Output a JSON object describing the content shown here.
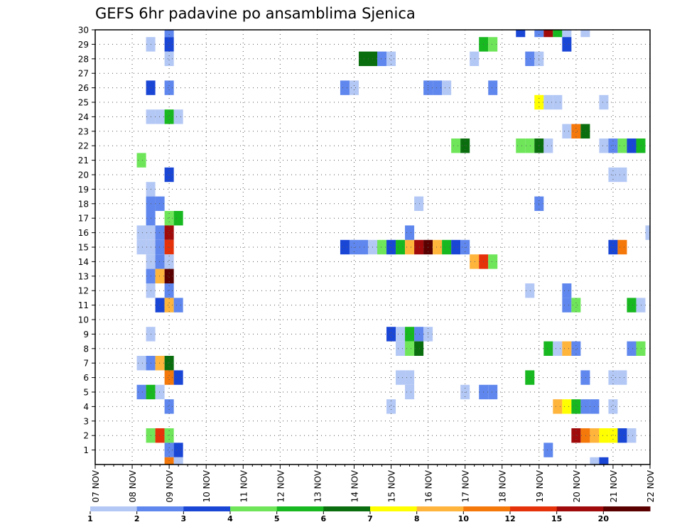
{
  "chart_data": {
    "type": "heatmap",
    "title": "GEFS 6hr padavine po ansamblima Sjenica",
    "x_tick_labels": [
      "07 NOV",
      "08 NOV",
      "09 NOV",
      "10 NOV",
      "11 NOV",
      "12 NOV",
      "13 NOV",
      "14 NOV",
      "15 NOV",
      "16 NOV",
      "17 NOV",
      "18 NOV",
      "19 NOV",
      "20 NOV",
      "21 NOV",
      "22 NOV"
    ],
    "x_range_days": [
      7,
      22
    ],
    "y_tick_labels": [
      "1",
      "2",
      "3",
      "4",
      "5",
      "6",
      "7",
      "8",
      "9",
      "10",
      "11",
      "12",
      "13",
      "14",
      "15",
      "16",
      "17",
      "18",
      "19",
      "20",
      "21",
      "22",
      "23",
      "24",
      "25",
      "26",
      "27",
      "28",
      "29",
      "30"
    ],
    "y_range": [
      0,
      30
    ],
    "grid": true,
    "legend": {
      "placement": "bottom",
      "labels": [
        "1",
        "2",
        "3",
        "4",
        "5",
        "6",
        "7",
        "8",
        "10",
        "12",
        "15",
        "20"
      ],
      "colors": [
        "#b4c8f5",
        "#5f87ed",
        "#1a46d6",
        "#6fe65a",
        "#18b820",
        "#0a6e0e",
        "#ffff00",
        "#ffb43c",
        "#f5780a",
        "#e6320a",
        "#a00a0a",
        "#5a0000"
      ]
    },
    "cell_width_days": 0.25,
    "cells": [
      {
        "t": 9.0,
        "m": 30,
        "l": 2
      },
      {
        "t": 9.0,
        "m": 29,
        "l": 3
      },
      {
        "t": 9.0,
        "m": 28,
        "l": 1
      },
      {
        "t": 8.5,
        "m": 29,
        "l": 1
      },
      {
        "t": 8.5,
        "m": 26,
        "l": 3
      },
      {
        "t": 9.0,
        "m": 26,
        "l": 2
      },
      {
        "t": 8.5,
        "m": 24,
        "l": 1
      },
      {
        "t": 8.75,
        "m": 24,
        "l": 1
      },
      {
        "t": 9.0,
        "m": 24,
        "l": 5
      },
      {
        "t": 9.25,
        "m": 24,
        "l": 1
      },
      {
        "t": 8.25,
        "m": 21,
        "l": 4
      },
      {
        "t": 9.0,
        "m": 20,
        "l": 3
      },
      {
        "t": 8.5,
        "m": 19,
        "l": 1
      },
      {
        "t": 8.5,
        "m": 18,
        "l": 2
      },
      {
        "t": 8.75,
        "m": 18,
        "l": 2
      },
      {
        "t": 8.5,
        "m": 17,
        "l": 2
      },
      {
        "t": 9.0,
        "m": 17,
        "l": 4
      },
      {
        "t": 9.25,
        "m": 17,
        "l": 5
      },
      {
        "t": 8.25,
        "m": 16,
        "l": 1
      },
      {
        "t": 8.5,
        "m": 16,
        "l": 1
      },
      {
        "t": 8.75,
        "m": 16,
        "l": 2
      },
      {
        "t": 9.0,
        "m": 16,
        "l": 11
      },
      {
        "t": 8.25,
        "m": 15,
        "l": 1
      },
      {
        "t": 8.5,
        "m": 15,
        "l": 1
      },
      {
        "t": 8.75,
        "m": 15,
        "l": 2
      },
      {
        "t": 9.0,
        "m": 15,
        "l": 10
      },
      {
        "t": 8.5,
        "m": 14,
        "l": 1
      },
      {
        "t": 8.75,
        "m": 14,
        "l": 2
      },
      {
        "t": 9.0,
        "m": 14,
        "l": 1
      },
      {
        "t": 8.5,
        "m": 13,
        "l": 2
      },
      {
        "t": 8.75,
        "m": 13,
        "l": 8
      },
      {
        "t": 9.0,
        "m": 13,
        "l": 12
      },
      {
        "t": 8.5,
        "m": 12,
        "l": 1
      },
      {
        "t": 9.0,
        "m": 12,
        "l": 2
      },
      {
        "t": 8.75,
        "m": 11,
        "l": 3
      },
      {
        "t": 9.0,
        "m": 11,
        "l": 8
      },
      {
        "t": 9.25,
        "m": 11,
        "l": 2
      },
      {
        "t": 8.5,
        "m": 9,
        "l": 1
      },
      {
        "t": 8.25,
        "m": 7,
        "l": 1
      },
      {
        "t": 8.5,
        "m": 7,
        "l": 2
      },
      {
        "t": 8.75,
        "m": 7,
        "l": 8
      },
      {
        "t": 9.0,
        "m": 7,
        "l": 6
      },
      {
        "t": 9.0,
        "m": 6,
        "l": 9
      },
      {
        "t": 9.25,
        "m": 6,
        "l": 3
      },
      {
        "t": 8.25,
        "m": 5,
        "l": 2
      },
      {
        "t": 8.5,
        "m": 5,
        "l": 5
      },
      {
        "t": 8.75,
        "m": 5,
        "l": 1
      },
      {
        "t": 9.0,
        "m": 4,
        "l": 2
      },
      {
        "t": 8.5,
        "m": 2,
        "l": 4
      },
      {
        "t": 8.75,
        "m": 2,
        "l": 10
      },
      {
        "t": 9.0,
        "m": 2,
        "l": 4
      },
      {
        "t": 9.0,
        "m": 1,
        "l": 2
      },
      {
        "t": 9.25,
        "m": 1,
        "l": 3
      },
      {
        "t": 9.0,
        "m": 0,
        "l": 9
      },
      {
        "t": 9.25,
        "m": 0,
        "l": 1
      },
      {
        "t": 14.25,
        "m": 28,
        "l": 6
      },
      {
        "t": 14.5,
        "m": 28,
        "l": 6
      },
      {
        "t": 14.75,
        "m": 28,
        "l": 2
      },
      {
        "t": 15.0,
        "m": 28,
        "l": 1
      },
      {
        "t": 13.75,
        "m": 26,
        "l": 2
      },
      {
        "t": 14.0,
        "m": 26,
        "l": 1
      },
      {
        "t": 16.0,
        "m": 26,
        "l": 2
      },
      {
        "t": 16.25,
        "m": 26,
        "l": 2
      },
      {
        "t": 16.5,
        "m": 26,
        "l": 1
      },
      {
        "t": 13.75,
        "m": 15,
        "l": 3
      },
      {
        "t": 14.0,
        "m": 15,
        "l": 2
      },
      {
        "t": 14.25,
        "m": 15,
        "l": 2
      },
      {
        "t": 14.5,
        "m": 15,
        "l": 1
      },
      {
        "t": 14.75,
        "m": 15,
        "l": 4
      },
      {
        "t": 15.0,
        "m": 15,
        "l": 3
      },
      {
        "t": 15.25,
        "m": 15,
        "l": 5
      },
      {
        "t": 15.5,
        "m": 15,
        "l": 8
      },
      {
        "t": 15.75,
        "m": 15,
        "l": 11
      },
      {
        "t": 16.0,
        "m": 15,
        "l": 12
      },
      {
        "t": 16.25,
        "m": 15,
        "l": 8
      },
      {
        "t": 16.5,
        "m": 15,
        "l": 5
      },
      {
        "t": 16.75,
        "m": 15,
        "l": 3
      },
      {
        "t": 17.0,
        "m": 15,
        "l": 2
      },
      {
        "t": 15.5,
        "m": 16,
        "l": 2
      },
      {
        "t": 15.75,
        "m": 18,
        "l": 1
      },
      {
        "t": 15.0,
        "m": 9,
        "l": 3
      },
      {
        "t": 15.25,
        "m": 9,
        "l": 1
      },
      {
        "t": 15.5,
        "m": 9,
        "l": 5
      },
      {
        "t": 15.75,
        "m": 9,
        "l": 2
      },
      {
        "t": 16.0,
        "m": 9,
        "l": 1
      },
      {
        "t": 15.25,
        "m": 8,
        "l": 1
      },
      {
        "t": 15.5,
        "m": 8,
        "l": 4
      },
      {
        "t": 15.75,
        "m": 8,
        "l": 6
      },
      {
        "t": 15.25,
        "m": 6,
        "l": 1
      },
      {
        "t": 15.5,
        "m": 6,
        "l": 1
      },
      {
        "t": 15.5,
        "m": 5,
        "l": 1
      },
      {
        "t": 15.0,
        "m": 4,
        "l": 1
      },
      {
        "t": 17.0,
        "m": 5,
        "l": 1
      },
      {
        "t": 17.5,
        "m": 5,
        "l": 2
      },
      {
        "t": 17.75,
        "m": 5,
        "l": 2
      },
      {
        "t": 17.5,
        "m": 29,
        "l": 5
      },
      {
        "t": 17.75,
        "m": 29,
        "l": 4
      },
      {
        "t": 17.25,
        "m": 28,
        "l": 1
      },
      {
        "t": 17.75,
        "m": 26,
        "l": 2
      },
      {
        "t": 16.75,
        "m": 22,
        "l": 4
      },
      {
        "t": 17.0,
        "m": 22,
        "l": 6
      },
      {
        "t": 17.25,
        "m": 14,
        "l": 8
      },
      {
        "t": 17.5,
        "m": 14,
        "l": 10
      },
      {
        "t": 17.75,
        "m": 14,
        "l": 4
      },
      {
        "t": 18.5,
        "m": 30,
        "l": 3
      },
      {
        "t": 19.0,
        "m": 30,
        "l": 2
      },
      {
        "t": 19.25,
        "m": 30,
        "l": 11
      },
      {
        "t": 19.5,
        "m": 30,
        "l": 5
      },
      {
        "t": 19.75,
        "m": 30,
        "l": 1
      },
      {
        "t": 20.25,
        "m": 30,
        "l": 1
      },
      {
        "t": 19.75,
        "m": 29,
        "l": 3
      },
      {
        "t": 18.75,
        "m": 28,
        "l": 2
      },
      {
        "t": 19.0,
        "m": 28,
        "l": 1
      },
      {
        "t": 19.0,
        "m": 25,
        "l": 7
      },
      {
        "t": 19.25,
        "m": 25,
        "l": 1
      },
      {
        "t": 19.5,
        "m": 25,
        "l": 1
      },
      {
        "t": 20.75,
        "m": 25,
        "l": 1
      },
      {
        "t": 19.75,
        "m": 23,
        "l": 1
      },
      {
        "t": 20.0,
        "m": 23,
        "l": 9
      },
      {
        "t": 20.25,
        "m": 23,
        "l": 6
      },
      {
        "t": 18.5,
        "m": 22,
        "l": 4
      },
      {
        "t": 18.75,
        "m": 22,
        "l": 4
      },
      {
        "t": 19.0,
        "m": 22,
        "l": 6
      },
      {
        "t": 19.25,
        "m": 22,
        "l": 1
      },
      {
        "t": 20.75,
        "m": 22,
        "l": 1
      },
      {
        "t": 21.0,
        "m": 22,
        "l": 2
      },
      {
        "t": 21.25,
        "m": 22,
        "l": 4
      },
      {
        "t": 21.5,
        "m": 22,
        "l": 3
      },
      {
        "t": 21.75,
        "m": 22,
        "l": 5
      },
      {
        "t": 21.0,
        "m": 20,
        "l": 1
      },
      {
        "t": 21.25,
        "m": 20,
        "l": 1
      },
      {
        "t": 19.0,
        "m": 18,
        "l": 2
      },
      {
        "t": 22.0,
        "m": 16,
        "l": 1
      },
      {
        "t": 21.0,
        "m": 15,
        "l": 3
      },
      {
        "t": 21.25,
        "m": 15,
        "l": 9
      },
      {
        "t": 18.75,
        "m": 12,
        "l": 1
      },
      {
        "t": 19.75,
        "m": 12,
        "l": 2
      },
      {
        "t": 19.75,
        "m": 11,
        "l": 2
      },
      {
        "t": 20.0,
        "m": 11,
        "l": 4
      },
      {
        "t": 21.5,
        "m": 11,
        "l": 5
      },
      {
        "t": 21.75,
        "m": 11,
        "l": 1
      },
      {
        "t": 19.25,
        "m": 8,
        "l": 5
      },
      {
        "t": 19.5,
        "m": 8,
        "l": 1
      },
      {
        "t": 19.75,
        "m": 8,
        "l": 8
      },
      {
        "t": 20.0,
        "m": 8,
        "l": 2
      },
      {
        "t": 21.5,
        "m": 8,
        "l": 2
      },
      {
        "t": 21.75,
        "m": 8,
        "l": 4
      },
      {
        "t": 18.75,
        "m": 6,
        "l": 5
      },
      {
        "t": 20.25,
        "m": 6,
        "l": 2
      },
      {
        "t": 21.0,
        "m": 6,
        "l": 1
      },
      {
        "t": 21.25,
        "m": 6,
        "l": 1
      },
      {
        "t": 19.5,
        "m": 4,
        "l": 8
      },
      {
        "t": 19.75,
        "m": 4,
        "l": 7
      },
      {
        "t": 20.0,
        "m": 4,
        "l": 5
      },
      {
        "t": 20.25,
        "m": 4,
        "l": 2
      },
      {
        "t": 20.5,
        "m": 4,
        "l": 2
      },
      {
        "t": 21.0,
        "m": 4,
        "l": 1
      },
      {
        "t": 20.0,
        "m": 2,
        "l": 11
      },
      {
        "t": 20.25,
        "m": 2,
        "l": 9
      },
      {
        "t": 20.5,
        "m": 2,
        "l": 8
      },
      {
        "t": 20.75,
        "m": 2,
        "l": 7
      },
      {
        "t": 21.0,
        "m": 2,
        "l": 7
      },
      {
        "t": 21.25,
        "m": 2,
        "l": 3
      },
      {
        "t": 21.5,
        "m": 2,
        "l": 1
      },
      {
        "t": 19.25,
        "m": 1,
        "l": 2
      },
      {
        "t": 20.5,
        "m": 0,
        "l": 1
      },
      {
        "t": 20.75,
        "m": 0,
        "l": 3
      }
    ]
  }
}
